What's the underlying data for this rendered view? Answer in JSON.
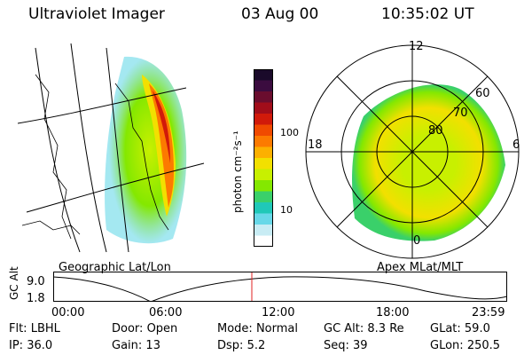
{
  "header": {
    "instrument": "Ultraviolet Imager",
    "date": "03 Aug 00",
    "time": "10:35:02 UT"
  },
  "colorbar": {
    "unit_label": "photon cm⁻²s⁻¹",
    "ticks": [
      "100",
      "10"
    ],
    "colors": [
      "#1a0a2a",
      "#3b0c3f",
      "#6a0d2e",
      "#a10d1a",
      "#d11a0a",
      "#f04a00",
      "#fc7a00",
      "#fcb000",
      "#f2e000",
      "#c8f000",
      "#84e800",
      "#3ad06a",
      "#20c8b8",
      "#68d8e8",
      "#c8ecf4",
      "#ffffff"
    ]
  },
  "left_panel": {
    "caption": "Geographic Lat/Lon"
  },
  "right_panel": {
    "caption": "Apex MLat/MLT",
    "mlt_labels": {
      "top": "12",
      "left": "18",
      "right": "6",
      "bottom": "0"
    },
    "lat_labels": [
      "60",
      "70",
      "80"
    ]
  },
  "timeline": {
    "ylabel": "GC Alt",
    "y_ticks": [
      "9.0",
      "1.8"
    ],
    "x_ticks": [
      "00:00",
      "06:00",
      "12:00",
      "18:00",
      "23:59"
    ],
    "current_marker": "10:35"
  },
  "status": {
    "row1": [
      {
        "key": "Flt:",
        "value": "LBHL"
      },
      {
        "key": "Door:",
        "value": "Open"
      },
      {
        "key": "Mode:",
        "value": "Normal"
      },
      {
        "key": "GC Alt:",
        "value": "8.3 Re"
      },
      {
        "key": "GLat:",
        "value": "59.0"
      }
    ],
    "row2": [
      {
        "key": "IP:",
        "value": "36.0"
      },
      {
        "key": "Gain:",
        "value": "13"
      },
      {
        "key": "Dsp:",
        "value": "5.2"
      },
      {
        "key": "Seq:",
        "value": "39"
      },
      {
        "key": "GLon:",
        "value": "250.5"
      }
    ]
  }
}
